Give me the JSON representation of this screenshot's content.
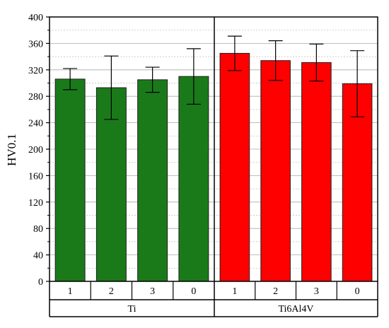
{
  "chart_data": {
    "type": "bar",
    "ylabel": "HV0.1",
    "ylim": [
      0,
      400
    ],
    "yticks": [
      0,
      40,
      80,
      120,
      160,
      200,
      240,
      280,
      320,
      360,
      400
    ],
    "minor_grid": true,
    "groups": [
      {
        "name": "Ti",
        "color": "#1a7a1a",
        "categories": [
          "1",
          "2",
          "3",
          "0"
        ],
        "values": [
          306,
          293,
          305,
          310
        ],
        "errors": [
          16,
          48,
          19,
          42
        ]
      },
      {
        "name": "Ti6Al4V",
        "color": "#ff0000",
        "categories": [
          "1",
          "2",
          "3",
          "0"
        ],
        "values": [
          345,
          334,
          331,
          299
        ],
        "errors": [
          26,
          30,
          28,
          50
        ]
      }
    ]
  }
}
